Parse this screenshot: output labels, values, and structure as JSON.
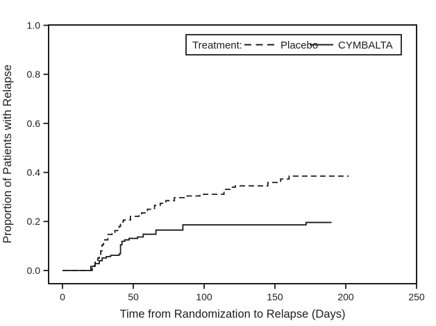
{
  "chart_data": {
    "type": "line",
    "subtype": "kaplan-meier-step",
    "title": "",
    "xlabel": "Time from Randomization to Relapse (Days)",
    "ylabel": "Proportion of Patients with Relapse",
    "xlim": [
      0,
      250
    ],
    "ylim": [
      0.0,
      1.0
    ],
    "xticks": [
      "0",
      "50",
      "100",
      "150",
      "200",
      "250"
    ],
    "yticks": [
      "0.0",
      "0.2",
      "0.4",
      "0.6",
      "0.8",
      "1.0"
    ],
    "grid": false,
    "frame": "full-box",
    "line_color": "#1c1c1c",
    "background_color": "#ffffff",
    "legend": {
      "title": "Treatment:",
      "position": "top-right-inside",
      "border": true,
      "entries": [
        {
          "name": "Placebo",
          "line_style": "dashed"
        },
        {
          "name": "CYMBALTA",
          "line_style": "solid"
        }
      ]
    },
    "series": [
      {
        "name": "Placebo",
        "line_style": "dashed",
        "x_unit": "days",
        "points": [
          [
            0,
            0.0
          ],
          [
            21,
            0.02
          ],
          [
            23,
            0.034
          ],
          [
            25,
            0.051
          ],
          [
            26,
            0.065
          ],
          [
            27,
            0.08
          ],
          [
            28,
            0.105
          ],
          [
            29,
            0.125
          ],
          [
            32,
            0.147
          ],
          [
            35,
            0.155
          ],
          [
            37,
            0.163
          ],
          [
            40,
            0.18
          ],
          [
            41,
            0.198
          ],
          [
            43,
            0.206
          ],
          [
            48,
            0.221
          ],
          [
            54,
            0.232
          ],
          [
            56,
            0.235
          ],
          [
            60,
            0.25
          ],
          [
            65,
            0.266
          ],
          [
            69,
            0.274
          ],
          [
            73,
            0.285
          ],
          [
            79,
            0.297
          ],
          [
            88,
            0.304
          ],
          [
            97,
            0.311
          ],
          [
            114,
            0.331
          ],
          [
            119,
            0.34
          ],
          [
            122,
            0.345
          ],
          [
            145,
            0.359
          ],
          [
            154,
            0.373
          ],
          [
            160,
            0.385
          ],
          [
            202,
            0.385
          ]
        ]
      },
      {
        "name": "CYMBALTA",
        "line_style": "solid",
        "x_unit": "days",
        "points": [
          [
            0,
            0.0
          ],
          [
            20,
            0.017
          ],
          [
            23,
            0.028
          ],
          [
            26,
            0.04
          ],
          [
            28,
            0.051
          ],
          [
            31,
            0.057
          ],
          [
            34,
            0.062
          ],
          [
            40,
            0.068
          ],
          [
            41,
            0.105
          ],
          [
            42,
            0.119
          ],
          [
            44,
            0.125
          ],
          [
            47,
            0.131
          ],
          [
            53,
            0.137
          ],
          [
            57,
            0.148
          ],
          [
            66,
            0.165
          ],
          [
            85,
            0.186
          ],
          [
            172,
            0.196
          ],
          [
            190,
            0.196
          ]
        ]
      }
    ]
  }
}
